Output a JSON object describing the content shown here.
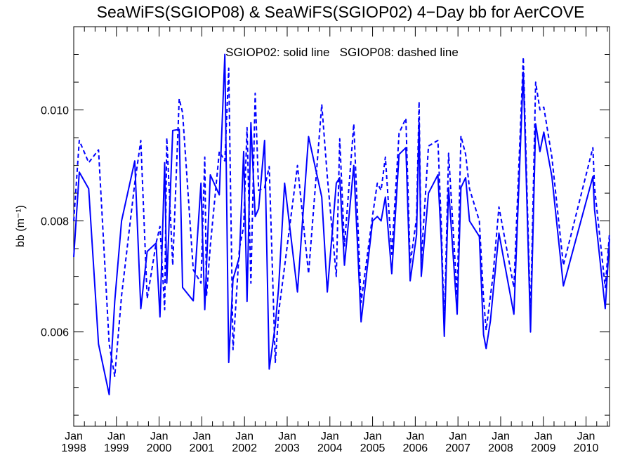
{
  "chart_data": {
    "type": "line",
    "title": "SeaWiFS(SGIOP08) & SeaWiFS(SGIOP02) 4−Day bb for AerCOVE",
    "annotation": "SGIOP02: solid line   SGIOP08: dashed line",
    "ylabel": "bb (m⁻¹)",
    "xlabel": "",
    "ylim": [
      0.0043,
      0.0115
    ],
    "xlim": [
      1998.0,
      2010.55
    ],
    "y_ticks": [
      {
        "value": 0.006,
        "label": "0.006"
      },
      {
        "value": 0.008,
        "label": "0.008"
      },
      {
        "value": 0.01,
        "label": "0.010"
      }
    ],
    "x_ticks": [
      {
        "value": 1998,
        "month": "Jan",
        "year": "1998"
      },
      {
        "value": 1999,
        "month": "Jan",
        "year": "1999"
      },
      {
        "value": 2000,
        "month": "Jan",
        "year": "2000"
      },
      {
        "value": 2001,
        "month": "Jan",
        "year": "2001"
      },
      {
        "value": 2002,
        "month": "Jan",
        "year": "2002"
      },
      {
        "value": 2003,
        "month": "Jan",
        "year": "2003"
      },
      {
        "value": 2004,
        "month": "Jan",
        "year": "2004"
      },
      {
        "value": 2005,
        "month": "Jan",
        "year": "2005"
      },
      {
        "value": 2006,
        "month": "Jan",
        "year": "2006"
      },
      {
        "value": 2007,
        "month": "Jan",
        "year": "2007"
      },
      {
        "value": 2008,
        "month": "Jan",
        "year": "2008"
      },
      {
        "value": 2009,
        "month": "Jan",
        "year": "2009"
      },
      {
        "value": 2010,
        "month": "Jan",
        "year": "2010"
      }
    ],
    "x": [
      1998.0,
      1998.13,
      1998.35,
      1998.58,
      1998.83,
      1998.96,
      1999.12,
      1999.43,
      1999.57,
      1999.72,
      1999.93,
      2000.02,
      2000.13,
      2000.18,
      2000.32,
      2000.47,
      2000.55,
      2000.8,
      2000.98,
      2001.07,
      2001.11,
      2001.2,
      2001.41,
      2001.54,
      2001.63,
      2001.73,
      2001.88,
      2001.98,
      2002.06,
      2002.15,
      2002.25,
      2002.33,
      2002.47,
      2002.58,
      2002.72,
      2002.8,
      2002.94,
      2003.24,
      2003.5,
      2003.81,
      2003.94,
      2004.15,
      2004.23,
      2004.34,
      2004.56,
      2004.73,
      2005.0,
      2005.11,
      2005.2,
      2005.3,
      2005.45,
      2005.62,
      2005.78,
      2005.88,
      2006.03,
      2006.09,
      2006.14,
      2006.31,
      2006.53,
      2006.61,
      2006.68,
      2006.78,
      2006.98,
      2007.07,
      2007.18,
      2007.27,
      2007.5,
      2007.6,
      2007.66,
      2007.76,
      2007.82,
      2007.96,
      2008.31,
      2008.53,
      2008.7,
      2008.82,
      2008.92,
      2009.01,
      2009.2,
      2009.47,
      2010.16,
      2010.2,
      2010.45,
      2010.55
    ],
    "series": [
      {
        "name": "SGIOP02",
        "style": "solid",
        "color": "#0000ff",
        "values": [
          0.00735,
          0.00888,
          0.00858,
          0.00578,
          0.00487,
          0.00655,
          0.008,
          0.00908,
          0.00642,
          0.00745,
          0.0076,
          0.00627,
          0.00905,
          0.00688,
          0.00963,
          0.00965,
          0.0068,
          0.00656,
          0.00868,
          0.0064,
          0.0072,
          0.00883,
          0.00847,
          0.011,
          0.00545,
          0.00695,
          0.00735,
          0.00925,
          0.00655,
          0.00977,
          0.00808,
          0.00822,
          0.00945,
          0.00533,
          0.00612,
          0.0068,
          0.00868,
          0.00672,
          0.00952,
          0.00843,
          0.00672,
          0.00868,
          0.00878,
          0.0072,
          0.009,
          0.00618,
          0.008,
          0.00808,
          0.008,
          0.00843,
          0.00705,
          0.0092,
          0.00932,
          0.00692,
          0.00775,
          0.00978,
          0.007,
          0.0085,
          0.00883,
          0.0076,
          0.00592,
          0.0086,
          0.00632,
          0.0086,
          0.00878,
          0.008,
          0.00772,
          0.00595,
          0.0057,
          0.0062,
          0.00668,
          0.00778,
          0.00632,
          0.01068,
          0.006,
          0.00975,
          0.00925,
          0.0096,
          0.0088,
          0.00683,
          0.0088,
          0.0082,
          0.00642,
          0.00768
        ]
      },
      {
        "name": "SGIOP08",
        "style": "dashed",
        "color": "#0000ff",
        "values": [
          0.008,
          0.00945,
          0.00905,
          0.00928,
          0.00578,
          0.0052,
          0.00665,
          0.00868,
          0.00945,
          0.0066,
          0.0076,
          0.0079,
          0.0064,
          0.0095,
          0.0072,
          0.0102,
          0.00995,
          0.00712,
          0.00688,
          0.00915,
          0.00665,
          0.00755,
          0.00925,
          0.00908,
          0.01075,
          0.00568,
          0.0075,
          0.0079,
          0.00968,
          0.00688,
          0.0103,
          0.00855,
          0.0086,
          0.00898,
          0.00545,
          0.00635,
          0.00718,
          0.009,
          0.00705,
          0.0101,
          0.0088,
          0.007,
          0.00948,
          0.00755,
          0.00975,
          0.00653,
          0.0081,
          0.00868,
          0.00855,
          0.00915,
          0.0074,
          0.00958,
          0.00985,
          0.00722,
          0.00805,
          0.01015,
          0.00728,
          0.00935,
          0.00945,
          0.0079,
          0.00605,
          0.00922,
          0.00665,
          0.00953,
          0.0092,
          0.00858,
          0.008,
          0.0066,
          0.00603,
          0.00665,
          0.007,
          0.00825,
          0.0068,
          0.01095,
          0.00625,
          0.0105,
          0.01,
          0.01005,
          0.00915,
          0.0072,
          0.00932,
          0.0086,
          0.0068,
          0.00778
        ]
      }
    ]
  }
}
